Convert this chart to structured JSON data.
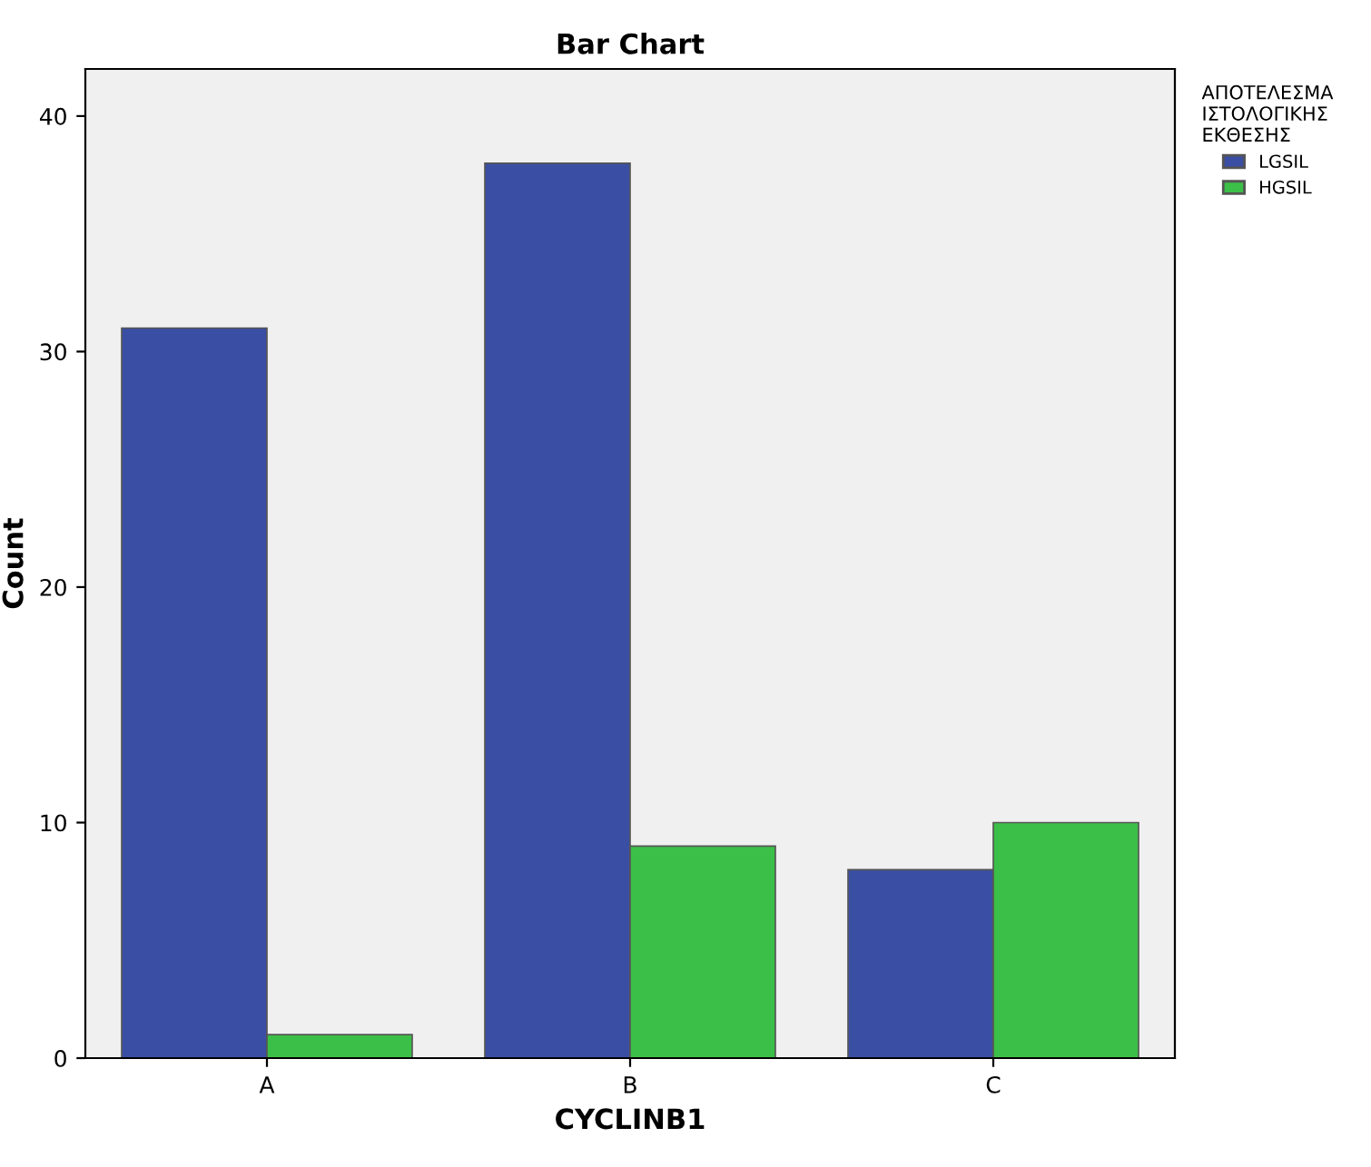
{
  "chart_data": {
    "type": "bar",
    "title": "Bar Chart",
    "xlabel": "CYCLINB1",
    "ylabel": "Count",
    "legend_title": "ΑΠΟΤΕΛΕΣΜΑ ΙΣΤΟΛΟΓΙΚΗΣ ΕΚΘΕΣΗΣ",
    "categories": [
      "A",
      "B",
      "C"
    ],
    "series": [
      {
        "name": "LGSIL",
        "color": "#3a4fa3",
        "values": [
          31,
          38,
          8
        ]
      },
      {
        "name": "HGSIL",
        "color": "#3cbf48",
        "values": [
          1,
          9,
          10
        ]
      }
    ],
    "ylim": [
      0,
      42
    ],
    "yticks": [
      0,
      10,
      20,
      30,
      40
    ],
    "grid": false,
    "legend": "top right"
  }
}
